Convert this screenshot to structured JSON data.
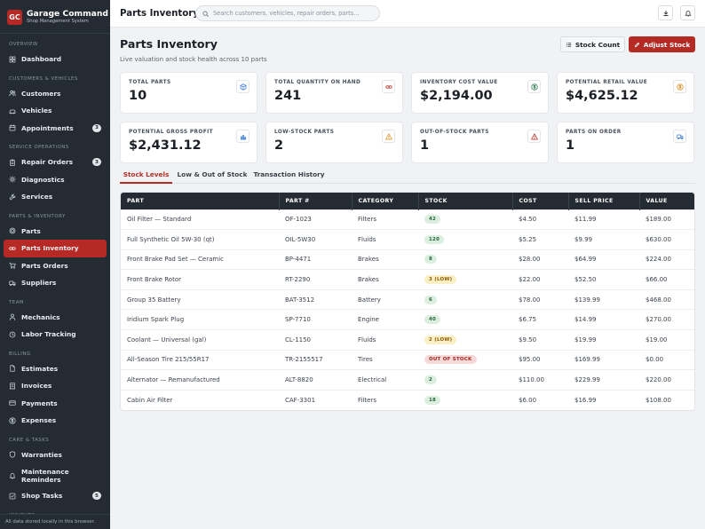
{
  "brand": {
    "initials": "GC",
    "name": "Garage Command",
    "subtitle": "Shop Management System"
  },
  "sidebar": {
    "sections": [
      {
        "title": "Overview",
        "items": [
          {
            "label": "Dashboard",
            "icon": "grid-icon"
          }
        ]
      },
      {
        "title": "Customers & Vehicles",
        "items": [
          {
            "label": "Customers",
            "icon": "users-icon"
          },
          {
            "label": "Vehicles",
            "icon": "car-icon"
          },
          {
            "label": "Appointments",
            "icon": "calendar-icon",
            "badge": "3"
          }
        ]
      },
      {
        "title": "Service Operations",
        "items": [
          {
            "label": "Repair Orders",
            "icon": "clipboard-icon",
            "badge": "3"
          },
          {
            "label": "Diagnostics",
            "icon": "gear-icon"
          },
          {
            "label": "Services",
            "icon": "wrench-icon"
          }
        ]
      },
      {
        "title": "Parts & Inventory",
        "items": [
          {
            "label": "Parts",
            "icon": "cog-icon"
          },
          {
            "label": "Parts Inventory",
            "icon": "link-icon",
            "active": true
          },
          {
            "label": "Parts Orders",
            "icon": "cart-icon"
          },
          {
            "label": "Suppliers",
            "icon": "truck-icon"
          }
        ]
      },
      {
        "title": "Team",
        "items": [
          {
            "label": "Mechanics",
            "icon": "user-icon"
          },
          {
            "label": "Labor Tracking",
            "icon": "clock-icon"
          }
        ]
      },
      {
        "title": "Billing",
        "items": [
          {
            "label": "Estimates",
            "icon": "file-icon"
          },
          {
            "label": "Invoices",
            "icon": "receipt-icon"
          },
          {
            "label": "Payments",
            "icon": "card-icon"
          },
          {
            "label": "Expenses",
            "icon": "dollar-icon"
          }
        ]
      },
      {
        "title": "Care & Tasks",
        "items": [
          {
            "label": "Warranties",
            "icon": "shield-icon"
          },
          {
            "label": "Maintenance Reminders",
            "icon": "bell-icon"
          },
          {
            "label": "Shop Tasks",
            "icon": "check-icon",
            "badge": "5"
          }
        ]
      },
      {
        "title": "Insights",
        "items": []
      }
    ],
    "footer": "All data stored locally in this browser."
  },
  "topbar": {
    "title": "Parts Inventory",
    "search_placeholder": "Search customers, vehicles, repair orders, parts..."
  },
  "page": {
    "title": "Parts Inventory",
    "subtitle": "Live valuation and stock health across 10 parts",
    "stock_count_label": "Stock Count",
    "adjust_stock_label": "Adjust Stock"
  },
  "stats": [
    {
      "label": "Total Parts",
      "value": "10",
      "icon": "cube-icon",
      "color": "#3a7bd5"
    },
    {
      "label": "Total Quantity on Hand",
      "value": "241",
      "icon": "link-icon",
      "color": "#b52a25"
    },
    {
      "label": "Inventory Cost Value",
      "value": "$2,194.00",
      "icon": "dollar-icon",
      "color": "#2e7d4f"
    },
    {
      "label": "Potential Retail Value",
      "value": "$4,625.12",
      "icon": "dollar-icon",
      "color": "#d98c1b"
    },
    {
      "label": "Potential Gross Profit",
      "value": "$2,431.12",
      "icon": "bar-chart-icon",
      "color": "#3a7bd5"
    },
    {
      "label": "Low-Stock Parts",
      "value": "2",
      "icon": "warning-icon",
      "color": "#d98c1b"
    },
    {
      "label": "Out-of-Stock Parts",
      "value": "1",
      "icon": "warning-icon",
      "color": "#b52a25"
    },
    {
      "label": "Parts on Order",
      "value": "1",
      "icon": "truck-icon",
      "color": "#3a7bd5"
    }
  ],
  "tabs": [
    {
      "label": "Stock Levels",
      "active": true
    },
    {
      "label": "Low & Out of Stock"
    },
    {
      "label": "Transaction History"
    }
  ],
  "table": {
    "columns": [
      "Part",
      "Part #",
      "Category",
      "Stock",
      "Cost",
      "Sell Price",
      "Value"
    ],
    "rows": [
      {
        "part": "Oil Filter — Standard",
        "num": "OF-1023",
        "category": "Filters",
        "stock": "42",
        "status": "ok",
        "cost": "$4.50",
        "sell": "$11.99",
        "value": "$189.00"
      },
      {
        "part": "Full Synthetic Oil 5W-30 (qt)",
        "num": "OIL-5W30",
        "category": "Fluids",
        "stock": "120",
        "status": "ok",
        "cost": "$5.25",
        "sell": "$9.99",
        "value": "$630.00"
      },
      {
        "part": "Front Brake Pad Set — Ceramic",
        "num": "BP-4471",
        "category": "Brakes",
        "stock": "8",
        "status": "ok",
        "cost": "$28.00",
        "sell": "$64.99",
        "value": "$224.00"
      },
      {
        "part": "Front Brake Rotor",
        "num": "RT-2290",
        "category": "Brakes",
        "stock": "3 (LOW)",
        "status": "low",
        "cost": "$22.00",
        "sell": "$52.50",
        "value": "$66.00"
      },
      {
        "part": "Group 35 Battery",
        "num": "BAT-3512",
        "category": "Battery",
        "stock": "6",
        "status": "ok",
        "cost": "$78.00",
        "sell": "$139.99",
        "value": "$468.00"
      },
      {
        "part": "Iridium Spark Plug",
        "num": "SP-7710",
        "category": "Engine",
        "stock": "40",
        "status": "ok",
        "cost": "$6.75",
        "sell": "$14.99",
        "value": "$270.00"
      },
      {
        "part": "Coolant — Universal (gal)",
        "num": "CL-1150",
        "category": "Fluids",
        "stock": "2 (LOW)",
        "status": "low",
        "cost": "$9.50",
        "sell": "$19.99",
        "value": "$19.00"
      },
      {
        "part": "All-Season Tire 215/55R17",
        "num": "TR-2155517",
        "category": "Tires",
        "stock": "OUT OF STOCK",
        "status": "out",
        "cost": "$95.00",
        "sell": "$169.99",
        "value": "$0.00"
      },
      {
        "part": "Alternator — Remanufactured",
        "num": "ALT-8820",
        "category": "Electrical",
        "stock": "2",
        "status": "ok",
        "cost": "$110.00",
        "sell": "$229.99",
        "value": "$220.00"
      },
      {
        "part": "Cabin Air Filter",
        "num": "CAF-3301",
        "category": "Filters",
        "stock": "18",
        "status": "ok",
        "cost": "$6.00",
        "sell": "$16.99",
        "value": "$108.00"
      }
    ]
  }
}
